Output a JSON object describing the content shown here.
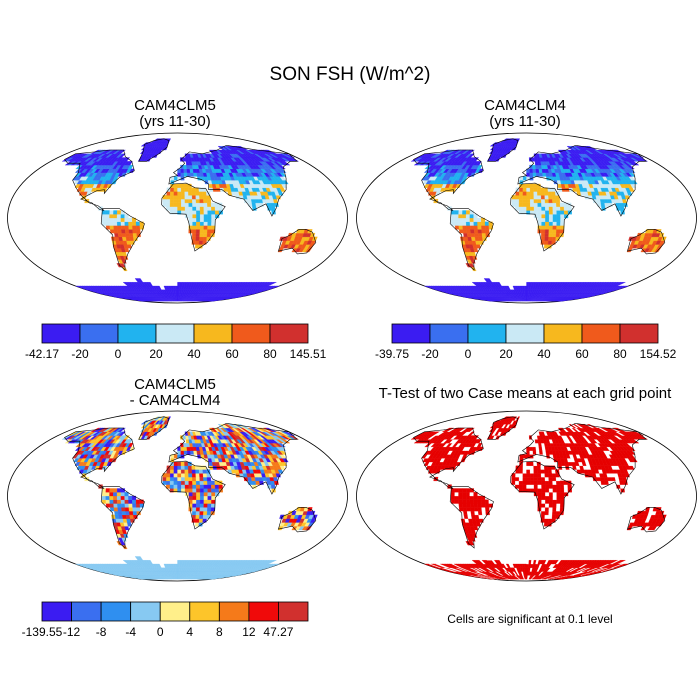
{
  "main_title": "SON FSH (W/m^2)",
  "panels": [
    {
      "id": "p1",
      "title_line1": "CAM4CLM5",
      "title_line2": "(yrs 11-30)",
      "kind": "mean",
      "colorbar": {
        "colors": [
          "#3b1cf2",
          "#3a6ff0",
          "#21b3ef",
          "#cae9f5",
          "#f7b81e",
          "#f05a1c",
          "#d1302e"
        ],
        "labels": [
          "-42.17",
          "-20",
          "0",
          "20",
          "40",
          "60",
          "80",
          "145.51"
        ]
      }
    },
    {
      "id": "p2",
      "title_line1": "CAM4CLM4",
      "title_line2": "(yrs 11-30)",
      "kind": "mean",
      "colorbar": {
        "colors": [
          "#3b1cf2",
          "#3a6ff0",
          "#21b3ef",
          "#cae9f5",
          "#f7b81e",
          "#f05a1c",
          "#d1302e"
        ],
        "labels": [
          "-39.75",
          "-20",
          "0",
          "20",
          "40",
          "60",
          "80",
          "154.52"
        ]
      }
    },
    {
      "id": "p3",
      "title_line1": "CAM4CLM5",
      "title_line2": "- CAM4CLM4",
      "kind": "diff",
      "colorbar": {
        "colors": [
          "#3b1cf2",
          "#3a6ff0",
          "#2f8ff0",
          "#87c9f2",
          "#ffef8a",
          "#fdc52a",
          "#f57a1a",
          "#f00a0a",
          "#d1302e"
        ],
        "labels": [
          "-139.55",
          "-12",
          "-8",
          "-4",
          "0",
          "4",
          "8",
          "12",
          "47.27"
        ]
      }
    },
    {
      "id": "p4",
      "title": "T-Test of two Case means at each grid point",
      "kind": "ttest"
    }
  ],
  "ttest_note": "Cells are significant at 0.1 level",
  "colors": {
    "significant": "#e60000",
    "outline": "#000000",
    "background": "#ffffff"
  }
}
